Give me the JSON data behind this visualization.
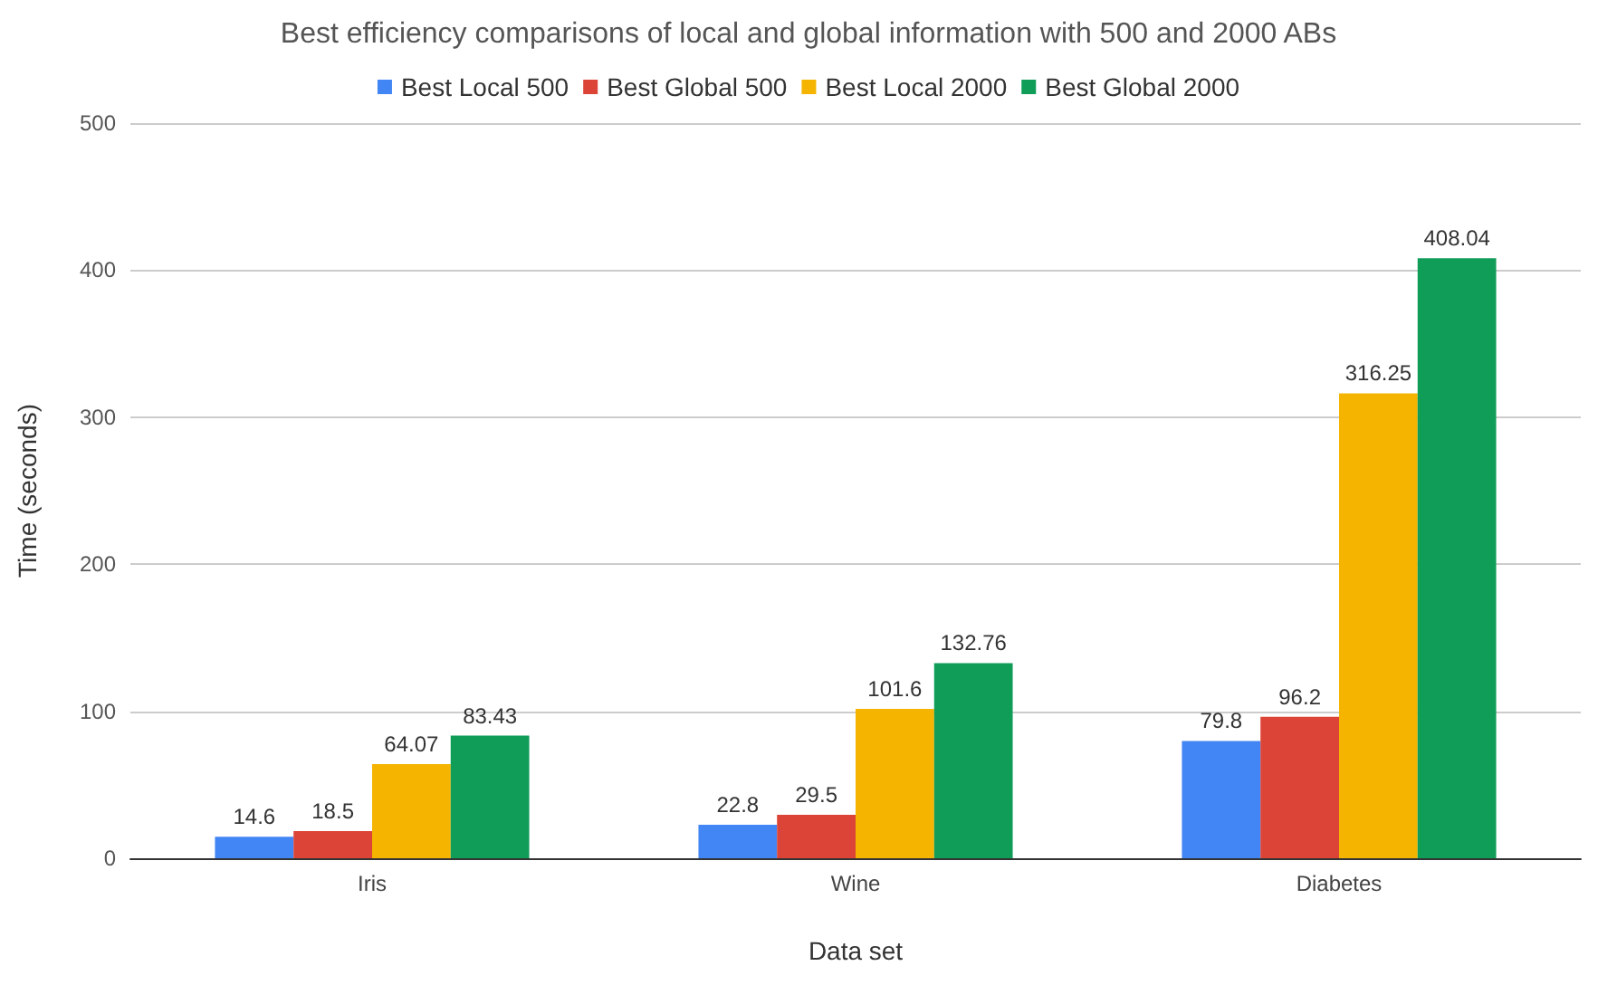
{
  "chart_data": {
    "type": "bar",
    "title": "Best efficiency comparisons of local and global information with 500 and 2000 ABs",
    "xlabel": "Data set",
    "ylabel": "Time (seconds)",
    "categories": [
      "Iris",
      "Wine",
      "Diabetes"
    ],
    "series": [
      {
        "name": "Best Local 500",
        "color": "#4285f4",
        "values": [
          14.6,
          22.8,
          79.8
        ]
      },
      {
        "name": "Best Global 500",
        "color": "#db4437",
        "values": [
          18.5,
          29.5,
          96.2
        ]
      },
      {
        "name": "Best Local 2000",
        "color": "#f4b400",
        "values": [
          64.07,
          101.6,
          316.25
        ]
      },
      {
        "name": "Best Global 2000",
        "color": "#0f9d58",
        "values": [
          83.43,
          132.76,
          408.04
        ]
      }
    ],
    "ylim": [
      0,
      500
    ],
    "yticks": [
      0,
      100,
      200,
      300,
      400,
      500
    ],
    "grid": "y",
    "legend": "top",
    "data_labels": true
  }
}
